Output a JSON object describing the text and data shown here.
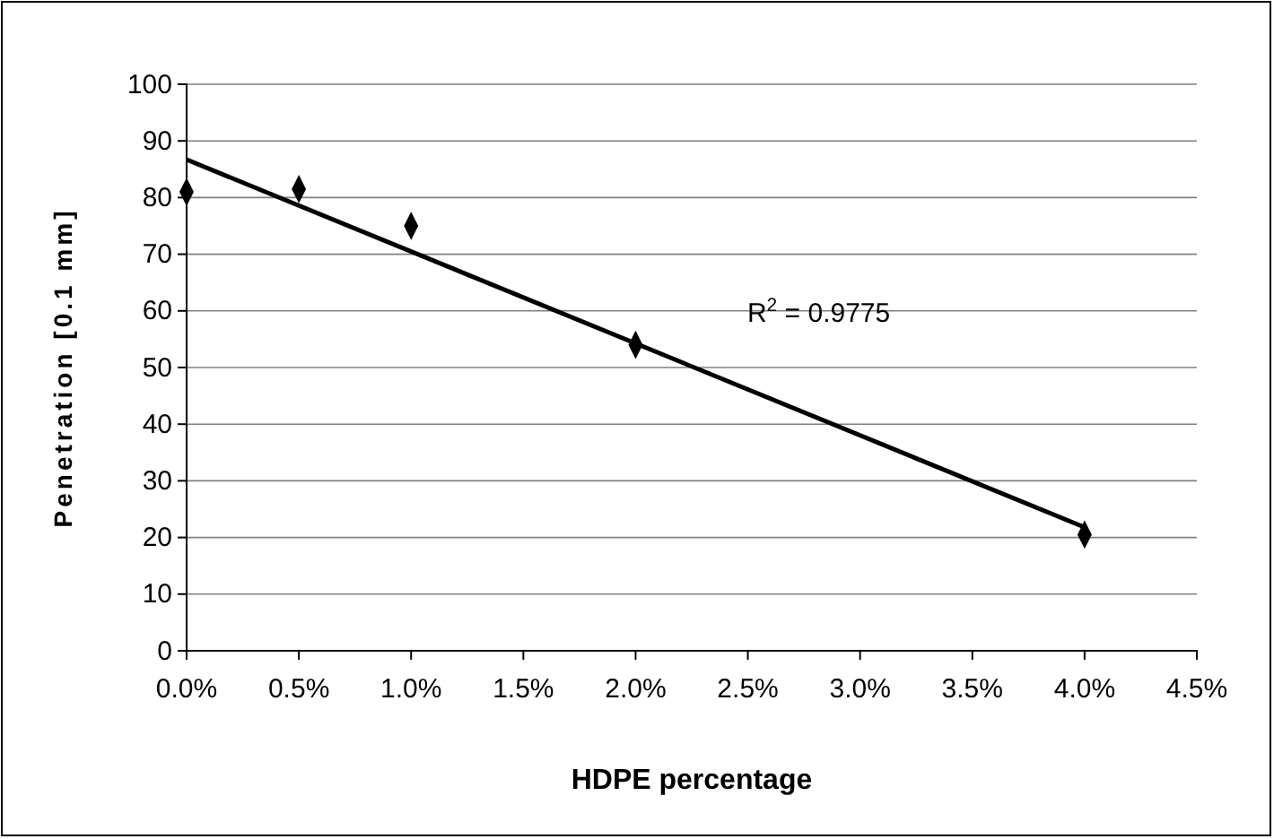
{
  "chart_data": {
    "type": "scatter",
    "xlabel": "HDPE percentage",
    "ylabel": "Penetration [0.1 mm]",
    "series": [
      {
        "x": [
          0,
          0.5,
          1,
          2,
          4
        ],
        "values": [
          81,
          81.5,
          75,
          54,
          20.5
        ],
        "color": "#000000",
        "marker": "diamond"
      },
      {
        "type": "line",
        "x": [
          0,
          4
        ],
        "values": [
          86.7,
          21.8
        ],
        "color": "#000000",
        "marker": "none",
        "line_style": "solid"
      }
    ],
    "annotations": [
      "R$^{2}$ = 0.9775"
    ],
    "xlim": [
      0,
      4.5
    ],
    "xticks": [
      {
        "value": 0,
        "label": "0.0%"
      },
      {
        "value": 0.5,
        "label": "0.5%"
      },
      {
        "value": 1,
        "label": "1.0%"
      },
      {
        "value": 1.5,
        "label": "1.5%"
      },
      {
        "value": 2,
        "label": "2.0%"
      },
      {
        "value": 2.5,
        "label": "2.5%"
      },
      {
        "value": 3,
        "label": "3.0%"
      },
      {
        "value": 3.5,
        "label": "3.5%"
      },
      {
        "value": 4,
        "label": "4.0%"
      },
      {
        "value": 4.5,
        "label": "4.5%"
      }
    ],
    "ylim": [
      0,
      100
    ],
    "yticks": [
      0,
      10,
      20,
      30,
      40,
      50,
      60,
      70,
      80,
      90,
      100
    ],
    "grid": "y"
  }
}
